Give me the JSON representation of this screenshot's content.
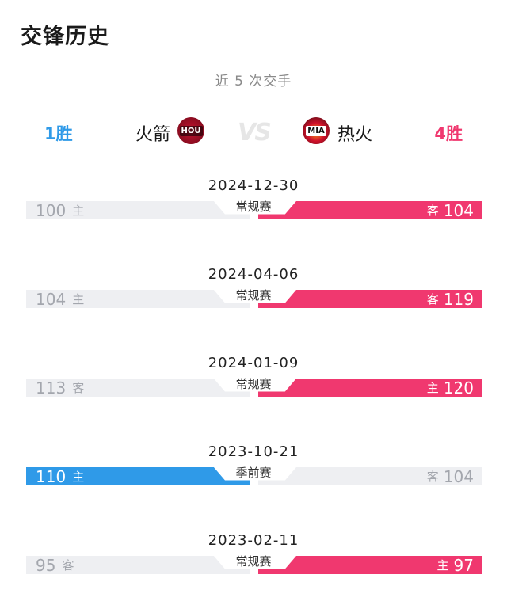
{
  "header": {
    "title": "交锋历史",
    "subtitle": "近 5 次交手"
  },
  "teams": {
    "left": {
      "name": "火箭",
      "wins": "1胜",
      "logo_text": "HOU",
      "logo_icon": "rockets-logo-icon"
    },
    "right": {
      "name": "热火",
      "wins": "4胜",
      "logo_text": "MIA",
      "logo_icon": "heat-logo-icon"
    },
    "vs_text": "VS"
  },
  "colors": {
    "accent_blue": "#2f9ae8",
    "accent_pink": "#f0386f",
    "loser_gray": "#eeeff2"
  },
  "games": [
    {
      "date": "2024-12-30",
      "type": "常规赛",
      "left_score": "100",
      "left_tag": "主",
      "right_score": "104",
      "right_tag": "客",
      "winner": "right"
    },
    {
      "date": "2024-04-06",
      "type": "常规赛",
      "left_score": "104",
      "left_tag": "主",
      "right_score": "119",
      "right_tag": "客",
      "winner": "right"
    },
    {
      "date": "2024-01-09",
      "type": "常规赛",
      "left_score": "113",
      "left_tag": "客",
      "right_score": "120",
      "right_tag": "主",
      "winner": "right"
    },
    {
      "date": "2023-10-21",
      "type": "季前赛",
      "left_score": "110",
      "left_tag": "主",
      "right_score": "104",
      "right_tag": "客",
      "winner": "left"
    },
    {
      "date": "2023-02-11",
      "type": "常规赛",
      "left_score": "95",
      "left_tag": "客",
      "right_score": "97",
      "right_tag": "主",
      "winner": "right"
    }
  ]
}
